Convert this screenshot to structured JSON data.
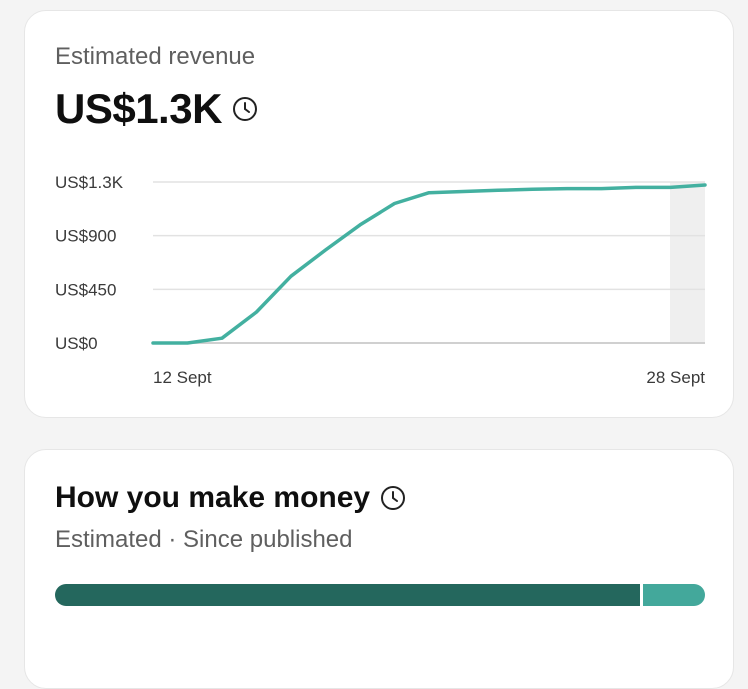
{
  "revenue": {
    "title": "Estimated revenue",
    "amount": "US$1.3K",
    "info_icon": "clock-icon"
  },
  "chart_data": {
    "type": "line",
    "x_start_label": "12 Sept",
    "x_end_label": "28 Sept",
    "y_ticks": [
      {
        "label": "US$0",
        "value": 0
      },
      {
        "label": "US$450",
        "value": 450
      },
      {
        "label": "US$900",
        "value": 900
      },
      {
        "label": "US$1.3K",
        "value": 1350
      }
    ],
    "ylim": [
      0,
      1350
    ],
    "x": [
      "12 Sept",
      "13 Sept",
      "14 Sept",
      "15 Sept",
      "16 Sept",
      "17 Sept",
      "18 Sept",
      "19 Sept",
      "20 Sept",
      "21 Sept",
      "22 Sept",
      "23 Sept",
      "24 Sept",
      "25 Sept",
      "26 Sept",
      "27 Sept",
      "28 Sept"
    ],
    "series": [
      {
        "values": [
          0,
          0,
          40,
          260,
          560,
          780,
          990,
          1170,
          1260,
          1270,
          1280,
          1290,
          1295,
          1295,
          1305,
          1305,
          1325
        ]
      }
    ],
    "line_color": "#43b0a0",
    "grid": true,
    "shaded_last_interval": true
  },
  "money": {
    "title": "How you make money",
    "subtitle": "Estimated · Since published",
    "info_icon": "clock-icon",
    "share_primary": 0.9,
    "colors": {
      "primary": "#24675d",
      "secondary": "#43a89b"
    }
  }
}
